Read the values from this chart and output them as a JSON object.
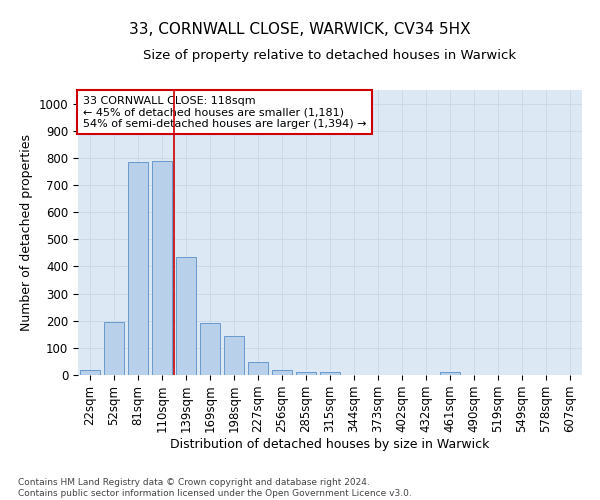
{
  "title1": "33, CORNWALL CLOSE, WARWICK, CV34 5HX",
  "title2": "Size of property relative to detached houses in Warwick",
  "xlabel": "Distribution of detached houses by size in Warwick",
  "ylabel": "Number of detached properties",
  "categories": [
    "22sqm",
    "52sqm",
    "81sqm",
    "110sqm",
    "139sqm",
    "169sqm",
    "198sqm",
    "227sqm",
    "256sqm",
    "285sqm",
    "315sqm",
    "344sqm",
    "373sqm",
    "402sqm",
    "432sqm",
    "461sqm",
    "490sqm",
    "519sqm",
    "549sqm",
    "578sqm",
    "607sqm"
  ],
  "values": [
    18,
    197,
    783,
    787,
    435,
    192,
    142,
    49,
    17,
    10,
    11,
    0,
    0,
    0,
    0,
    10,
    0,
    0,
    0,
    0,
    0
  ],
  "bar_color": "#b8d0ea",
  "bar_edge_color": "#6699cc",
  "grid_color": "#c8d8e8",
  "background_color": "#dce8f4",
  "vline_color": "#cc0000",
  "annotation_text": "33 CORNWALL CLOSE: 118sqm\n← 45% of detached houses are smaller (1,181)\n54% of semi-detached houses are larger (1,394) →",
  "annotation_box_color": "#ffffff",
  "annotation_box_edge": "#cc0000",
  "ylim": [
    0,
    1050
  ],
  "yticks": [
    0,
    100,
    200,
    300,
    400,
    500,
    600,
    700,
    800,
    900,
    1000
  ],
  "footnote": "Contains HM Land Registry data © Crown copyright and database right 2024.\nContains public sector information licensed under the Open Government Licence v3.0.",
  "title1_fontsize": 11,
  "title2_fontsize": 9.5,
  "xlabel_fontsize": 9,
  "ylabel_fontsize": 9,
  "tick_fontsize": 8.5,
  "annot_fontsize": 8
}
